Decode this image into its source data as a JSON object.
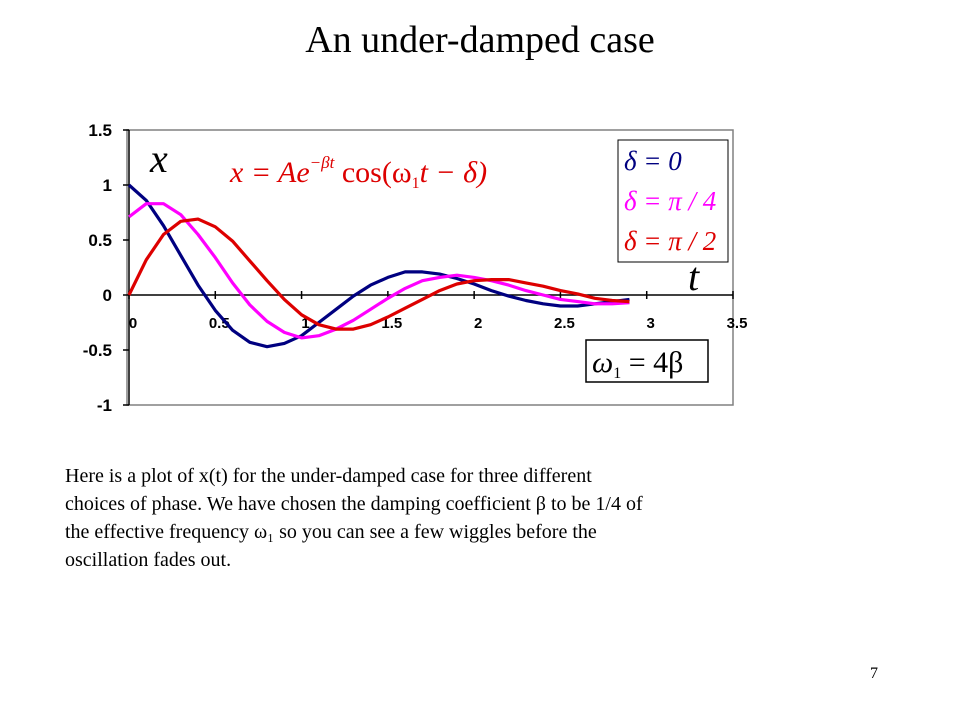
{
  "slide": {
    "title": "An under-damped case",
    "paragraph": [
      "Here is a plot of x(t) for the under-damped case for three different",
      "choices of phase. We have chosen the damping coefficient β to be 1/4 of",
      "the effective frequency ω₁ so you can see a few wiggles before the",
      "oscillation fades out."
    ],
    "page_number": "7"
  },
  "chart_data": {
    "type": "line",
    "annotations": {
      "y_var": "x",
      "t_var": "t",
      "formula": [
        "x = Ae",
        "−βt",
        " cos(ω",
        "1",
        "t − δ)"
      ],
      "omega": [
        "ω",
        "1",
        " = 4β"
      ]
    },
    "x": [
      0,
      0.1,
      0.2,
      0.3,
      0.4,
      0.5,
      0.6,
      0.7,
      0.8,
      0.9,
      1.0,
      1.1,
      1.2,
      1.3,
      1.4,
      1.5,
      1.6,
      1.7,
      1.8,
      1.9,
      2.0,
      2.1,
      2.2,
      2.3,
      2.4,
      2.5,
      2.6,
      2.7,
      2.8,
      2.9
    ],
    "series": [
      {
        "name": "δ = 0",
        "color": "#000080",
        "values": [
          1.0,
          0.86,
          0.63,
          0.36,
          0.09,
          -0.14,
          -0.32,
          -0.43,
          -0.47,
          -0.44,
          -0.37,
          -0.25,
          -0.13,
          -0.01,
          0.09,
          0.16,
          0.21,
          0.21,
          0.19,
          0.15,
          0.1,
          0.04,
          -0.01,
          -0.05,
          -0.08,
          -0.1,
          -0.1,
          -0.08,
          -0.06,
          -0.04
        ]
      },
      {
        "name": "δ = π / 4",
        "color": "#ff00ff",
        "values": [
          0.71,
          0.83,
          0.83,
          0.73,
          0.55,
          0.34,
          0.11,
          -0.09,
          -0.24,
          -0.34,
          -0.39,
          -0.37,
          -0.31,
          -0.23,
          -0.13,
          -0.03,
          0.06,
          0.13,
          0.16,
          0.18,
          0.16,
          0.13,
          0.09,
          0.04,
          0,
          -0.04,
          -0.06,
          -0.08,
          -0.08,
          -0.07
        ]
      },
      {
        "name": "δ = π / 2",
        "color": "#dd0000",
        "values": [
          0,
          0.32,
          0.55,
          0.67,
          0.69,
          0.62,
          0.49,
          0.31,
          0.13,
          -0.04,
          -0.18,
          -0.27,
          -0.31,
          -0.31,
          -0.27,
          -0.2,
          -0.12,
          -0.04,
          0.04,
          0.1,
          0.13,
          0.14,
          0.14,
          0.11,
          0.08,
          0.04,
          0.01,
          -0.03,
          -0.05,
          -0.06
        ]
      }
    ],
    "xlim": [
      0,
      3.5
    ],
    "xticks": [
      0,
      0.5,
      1,
      1.5,
      2,
      2.5,
      3,
      3.5
    ],
    "ylim": [
      -1,
      1.5
    ],
    "yticks": [
      -1,
      -0.5,
      0,
      0.5,
      1,
      1.5
    ],
    "grid": false
  }
}
